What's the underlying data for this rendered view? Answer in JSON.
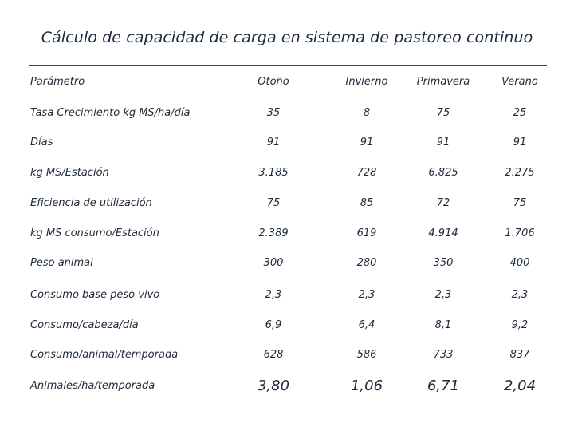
{
  "title": "Cálculo de capacidad de carga en sistema de pastoreo continuo",
  "table": {
    "headers": [
      "Parámetro",
      "Otoño",
      "Invierno",
      "Primavera",
      "Verano"
    ],
    "rows": [
      {
        "label": "Tasa Crecimiento kg MS/ha/día",
        "values": [
          "35",
          "8",
          "75",
          "25"
        ]
      },
      {
        "label": "Días",
        "values": [
          "91",
          "91",
          "91",
          "91"
        ]
      },
      {
        "label": "kg MS/Estación",
        "values": [
          "3.185",
          "728",
          "6.825",
          "2.275"
        ]
      },
      {
        "label": "Eficiencia de utilización",
        "values": [
          "75",
          "85",
          "72",
          "75"
        ]
      },
      {
        "label": "kg MS consumo/Estación",
        "values": [
          "2.389",
          "619",
          "4.914",
          "1.706"
        ]
      },
      {
        "label": "Peso animal",
        "values": [
          "300",
          "280",
          "350",
          "400"
        ]
      },
      {
        "label": "Consumo base peso vivo",
        "values": [
          "2,3",
          "2,3",
          "2,3",
          "2,3"
        ]
      },
      {
        "label": "Consumo/cabeza/día",
        "values": [
          "6,9",
          "6,4",
          "8,1",
          "9,2"
        ]
      },
      {
        "label": "Consumo/animal/temporada",
        "values": [
          "628",
          "586",
          "733",
          "837"
        ]
      },
      {
        "label": "Animales/ha/temporada",
        "values": [
          "3,80",
          "1,06",
          "6,71",
          "2,04"
        ]
      }
    ]
  }
}
